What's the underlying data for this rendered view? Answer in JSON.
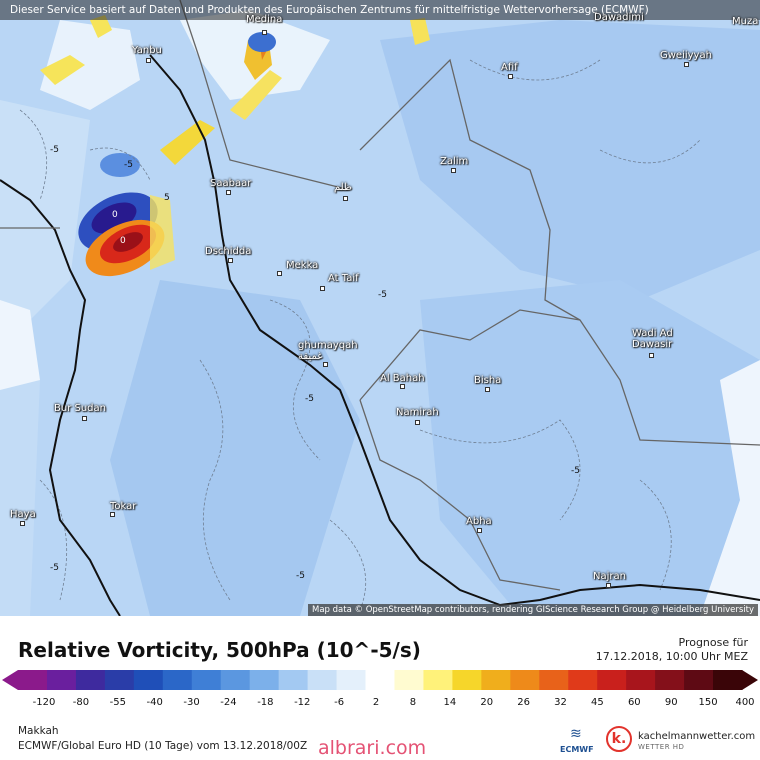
{
  "header": {
    "service_note": "Dieser Service basiert auf Daten und Produkten des Europäischen Zentrums für mittelfristige Wettervorhersage (ECMWF)"
  },
  "map": {
    "attribution": "Map data © OpenStreetMap contributors, rendering GIScience Research Group @ Heidelberg University",
    "cities": [
      {
        "name": "Medina"
      },
      {
        "name": "Dawadimi"
      },
      {
        "name": "Muza"
      },
      {
        "name": "Yanbu"
      },
      {
        "name": "Afif"
      },
      {
        "name": "Gweiiyyah"
      },
      {
        "name": "Zalim"
      },
      {
        "name": "Saabaar"
      },
      {
        "name": "ظلم"
      },
      {
        "name": "Dschidda"
      },
      {
        "name": "Mekka"
      },
      {
        "name": "At Taif"
      },
      {
        "name": "Wadi Ad Dawasir"
      },
      {
        "name": "ghumayqah غميقة"
      },
      {
        "name": "Al Bahah"
      },
      {
        "name": "Bisha"
      },
      {
        "name": "Bur Sudan"
      },
      {
        "name": "Namirah"
      },
      {
        "name": "Haya"
      },
      {
        "name": "Tokar"
      },
      {
        "name": "Abha"
      },
      {
        "name": "Najran"
      }
    ],
    "contour_labels": [
      "-5",
      "-5",
      "5",
      "0",
      "0",
      "-5",
      "-5",
      "-5",
      "-5",
      "-5"
    ]
  },
  "footer": {
    "title": "Relative Vorticity, 500hPa (10^-5/s)",
    "prognose_label": "Prognose für",
    "prognose_time": "17.12.2018, 10:00 Uhr MEZ",
    "location": "Makkah",
    "model_info": "ECMWF/Global Euro HD (10 Tage) vom 13.12.2018/00Z",
    "watermark": "albrari.com",
    "ecmwf_label": "ECMWF",
    "provider_name": "kachelmannwetter.com",
    "provider_sub": "WETTER HD"
  },
  "colorbar": {
    "ticks": [
      "-120",
      "-80",
      "-55",
      "-40",
      "-30",
      "-24",
      "-18",
      "-12",
      "-6",
      "2",
      "8",
      "14",
      "20",
      "26",
      "32",
      "45",
      "60",
      "90",
      "150",
      "400"
    ],
    "colors": [
      "#8b1a8b",
      "#6a1f9e",
      "#3e2a9e",
      "#2a3da8",
      "#1f4fb8",
      "#2b67c8",
      "#3f7fd6",
      "#5b97e0",
      "#7cb0ea",
      "#a3c9f2",
      "#c9e0f7",
      "#e4f0fb",
      "#ffffff",
      "#fffbd0",
      "#fff27a",
      "#f6d62a",
      "#f0ae1c",
      "#ee8a1a",
      "#e8621a",
      "#e03a1a",
      "#c9201c",
      "#a8151c",
      "#84101a",
      "#5e0a14",
      "#3a0508"
    ]
  }
}
